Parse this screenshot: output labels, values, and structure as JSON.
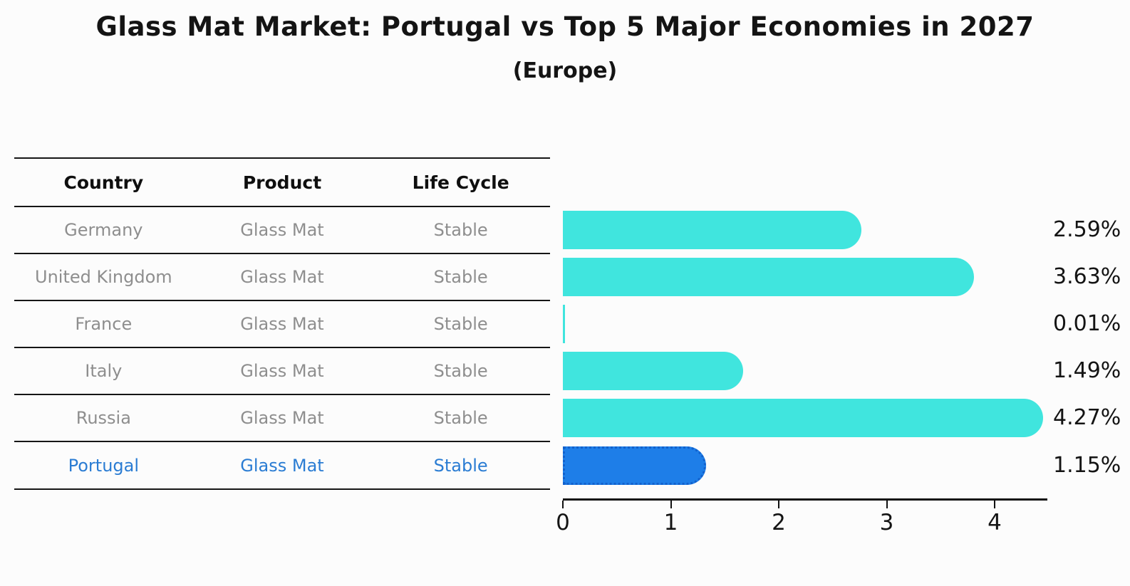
{
  "title": "Glass Mat Market: Portugal vs Top 5 Major Economies in 2027",
  "subtitle": "(Europe)",
  "table": {
    "headers": [
      "Country",
      "Product",
      "Life Cycle"
    ],
    "rows": [
      {
        "country": "Germany",
        "product": "Glass Mat",
        "life_cycle": "Stable",
        "highlight": false
      },
      {
        "country": "United Kingdom",
        "product": "Glass Mat",
        "life_cycle": "Stable",
        "highlight": false
      },
      {
        "country": "France",
        "product": "Glass Mat",
        "life_cycle": "Stable",
        "highlight": false
      },
      {
        "country": "Italy",
        "product": "Glass Mat",
        "life_cycle": "Stable",
        "highlight": false
      },
      {
        "country": "Russia",
        "product": "Glass Mat",
        "life_cycle": "Stable",
        "highlight": false
      },
      {
        "country": "Portugal",
        "product": "Glass Mat",
        "life_cycle": "Stable",
        "highlight": true
      }
    ]
  },
  "chart_data": {
    "type": "bar",
    "orientation": "horizontal",
    "title": "Glass Mat Market: Portugal vs Top 5 Major Economies in 2027",
    "subtitle": "(Europe)",
    "categories": [
      "Germany",
      "United Kingdom",
      "France",
      "Italy",
      "Russia",
      "Portugal"
    ],
    "values": [
      2.59,
      3.63,
      0.01,
      1.49,
      4.27,
      1.15
    ],
    "value_labels": [
      "2.59%",
      "3.63%",
      "0.01%",
      "1.49%",
      "4.27%",
      "1.15%"
    ],
    "highlight_index": 5,
    "x_ticks": [
      0,
      1,
      2,
      3,
      4
    ],
    "xlim": [
      0,
      4.5
    ],
    "grid": false,
    "legend": false,
    "xlabel": "",
    "ylabel": ""
  },
  "colors": {
    "bar_cyan": "#40E5DE",
    "bar_blue": "#1E7EE8",
    "bar_blue_border": "#1261CC",
    "highlight_text": "#2A7CD3",
    "muted_text": "#8E8E8E",
    "heading_text": "#141414"
  }
}
